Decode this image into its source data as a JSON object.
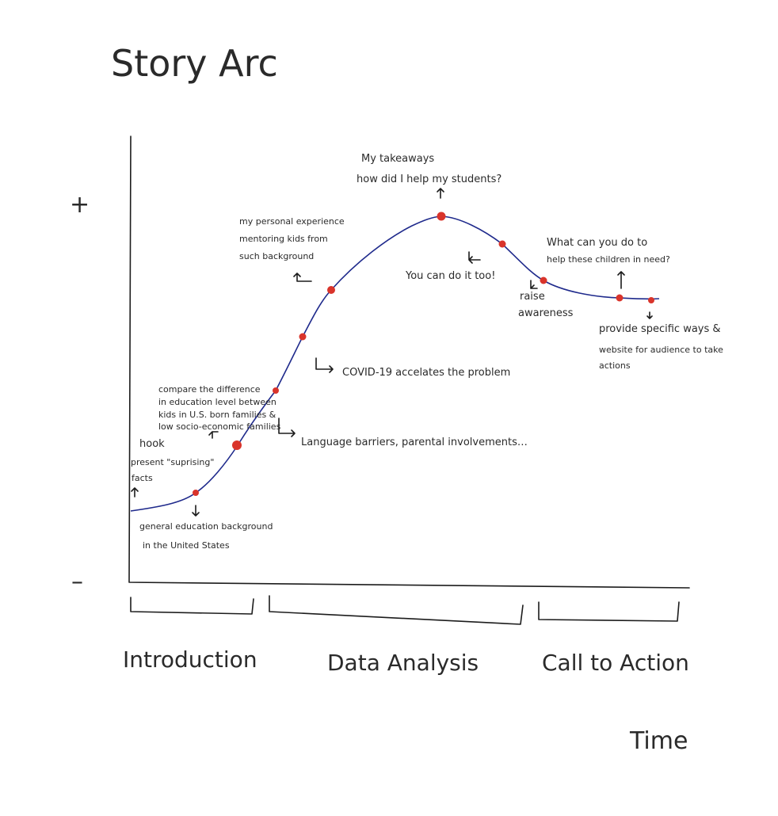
{
  "title": "Story Arc",
  "axis": {
    "x_label": "Time",
    "y_top": "+",
    "y_bottom": "–"
  },
  "sections": [
    "Introduction",
    "Data Analysis",
    "Call to Action"
  ],
  "annotations": {
    "hook": [
      "hook",
      "present \"suprising\"",
      "facts"
    ],
    "general": [
      "general education background",
      "in the United States"
    ],
    "compare": [
      "compare the difference",
      "in education level between",
      "kids in U.S. born families &",
      "low socio-economic families"
    ],
    "language": "Language barriers, parental involvements…",
    "covid": "COVID-19 accelates the problem",
    "personal": [
      "my personal experience",
      "mentoring kids from",
      "such background"
    ],
    "takeaways": [
      "My takeaways",
      "how did I help my students?"
    ],
    "you_can": "You can do it too!",
    "raise": [
      "raise",
      "awareness"
    ],
    "what_can": [
      "What can you do to",
      "help these children in need?"
    ],
    "provide": [
      "provide specific ways &",
      "website for audience to take",
      "actions"
    ]
  },
  "colors": {
    "curve": "#1f2a8c",
    "points": "#d9342b",
    "ink": "#1c1c1c"
  }
}
